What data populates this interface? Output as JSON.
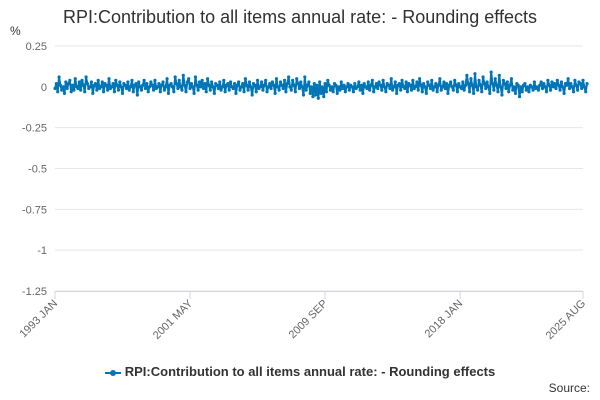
{
  "chart_data": {
    "type": "line",
    "title": "RPI:Contribution to all items annual rate: - Rounding effects",
    "y_unit_label": "%",
    "xlabel": "",
    "ylabel": "",
    "ylim": [
      -1.25,
      0.25
    ],
    "y_ticks": [
      "0.25",
      "0",
      "-0.25",
      "-0.5",
      "-0.75",
      "-1",
      "-1.25"
    ],
    "x_ticks": [
      "1993 JAN",
      "2001 MAY",
      "2009 SEP",
      "2018 JAN",
      "2025 AUG"
    ],
    "x_range": [
      "1993 JAN",
      "2025 AUG"
    ],
    "grid": true,
    "legend_position": "bottom",
    "series": [
      {
        "name": "RPI:Contribution to all items annual rate: - Rounding effects",
        "color": "#0075b8",
        "start": "1993 JAN",
        "frequency": "monthly",
        "values": [
          -0.01,
          0.02,
          -0.03,
          0.06,
          0.01,
          -0.02,
          0.0,
          -0.04,
          0.03,
          -0.01,
          0.02,
          0.04,
          -0.03,
          0.01,
          -0.02,
          0.05,
          0.0,
          -0.01,
          0.03,
          -0.02,
          0.04,
          0.01,
          -0.03,
          0.06,
          0.02,
          -0.01,
          0.0,
          0.03,
          -0.04,
          0.01,
          0.02,
          -0.02,
          0.04,
          -0.01,
          0.0,
          0.03,
          -0.03,
          0.02,
          0.01,
          -0.02,
          0.05,
          -0.01,
          0.0,
          0.02,
          -0.03,
          0.04,
          0.01,
          -0.02,
          0.03,
          0.0,
          -0.04,
          0.02,
          0.01,
          -0.01,
          0.03,
          -0.02,
          0.0,
          0.04,
          -0.03,
          0.01,
          0.02,
          -0.05,
          0.03,
          0.0,
          -0.02,
          0.01,
          0.04,
          -0.01,
          0.02,
          -0.03,
          0.0,
          0.03,
          0.01,
          -0.02,
          0.04,
          -0.01,
          0.0,
          0.02,
          -0.03,
          0.01,
          0.03,
          -0.02,
          0.0,
          0.05,
          -0.04,
          0.01,
          0.02,
          0.0,
          -0.03,
          0.06,
          0.02,
          -0.01,
          0.04,
          0.0,
          -0.02,
          0.07,
          0.01,
          -0.03,
          0.03,
          0.05,
          -0.01,
          0.02,
          0.0,
          -0.04,
          0.06,
          0.01,
          -0.02,
          0.03,
          0.0,
          0.04,
          -0.01,
          0.02,
          -0.03,
          0.05,
          0.01,
          -0.02,
          0.03,
          0.0,
          -0.04,
          0.02,
          0.01,
          -0.01,
          0.03,
          -0.02,
          0.0,
          0.04,
          -0.03,
          0.01,
          0.02,
          -0.02,
          0.03,
          0.0,
          -0.01,
          0.02,
          -0.04,
          0.01,
          0.03,
          -0.02,
          0.0,
          0.02,
          -0.03,
          0.05,
          0.01,
          -0.02,
          0.03,
          0.0,
          -0.05,
          0.02,
          0.01,
          -0.03,
          0.04,
          -0.01,
          0.0,
          0.03,
          -0.02,
          0.01,
          0.04,
          -0.03,
          0.0,
          0.02,
          -0.01,
          0.03,
          0.01,
          -0.04,
          0.05,
          0.0,
          -0.02,
          0.03,
          0.01,
          -0.01,
          0.04,
          -0.03,
          0.02,
          0.06,
          0.0,
          -0.02,
          0.04,
          0.01,
          -0.03,
          0.05,
          0.02,
          -0.01,
          0.03,
          0.0,
          -0.05,
          0.06,
          -0.02,
          0.01,
          0.03,
          -0.04,
          0.0,
          -0.06,
          0.02,
          -0.05,
          0.01,
          -0.07,
          0.03,
          -0.04,
          0.0,
          -0.06,
          0.02,
          -0.03,
          0.04,
          0.01,
          -0.02,
          0.0,
          -0.03,
          0.02,
          0.01,
          -0.04,
          0.0,
          -0.02,
          0.03,
          -0.01,
          0.01,
          -0.03,
          0.0,
          0.02,
          -0.02,
          0.01,
          0.0,
          -0.03,
          0.02,
          -0.01,
          0.0,
          0.03,
          -0.02,
          0.01,
          -0.04,
          0.02,
          0.0,
          -0.01,
          0.03,
          -0.02,
          0.01,
          0.04,
          -0.03,
          0.0,
          0.02,
          -0.01,
          0.03,
          0.01,
          -0.02,
          0.04,
          0.0,
          -0.03,
          0.02,
          0.01,
          -0.01,
          0.05,
          -0.02,
          0.0,
          0.03,
          -0.04,
          0.01,
          0.02,
          -0.02,
          0.04,
          0.0,
          -0.01,
          0.03,
          -0.03,
          0.02,
          0.01,
          -0.02,
          0.04,
          -0.01,
          0.0,
          0.03,
          -0.02,
          0.05,
          0.01,
          -0.03,
          0.02,
          0.0,
          -0.04,
          0.03,
          0.01,
          -0.01,
          0.04,
          -0.02,
          0.0,
          0.02,
          -0.03,
          0.01,
          0.05,
          -0.02,
          0.0,
          0.03,
          -0.01,
          0.02,
          -0.04,
          0.01,
          0.03,
          0.0,
          -0.02,
          0.04,
          0.01,
          -0.03,
          0.02,
          0.0,
          -0.01,
          0.03,
          -0.02,
          0.01,
          0.07,
          0.02,
          -0.03,
          0.05,
          0.01,
          -0.04,
          0.08,
          0.0,
          -0.02,
          0.04,
          0.01,
          -0.03,
          0.06,
          0.02,
          -0.01,
          0.03,
          0.0,
          -0.04,
          0.09,
          0.02,
          -0.02,
          0.05,
          0.01,
          -0.03,
          0.07,
          0.0,
          -0.05,
          0.04,
          0.02,
          -0.01,
          0.03,
          -0.03,
          0.01,
          0.05,
          -0.02,
          0.0,
          -0.04,
          0.02,
          0.01,
          -0.06,
          0.0,
          -0.03,
          0.01,
          0.02,
          -0.02,
          0.0,
          -0.03,
          0.01,
          0.0,
          -0.02,
          0.03,
          -0.01,
          0.0,
          -0.02,
          0.01,
          0.03,
          -0.01,
          0.02,
          0.0,
          -0.03,
          0.04,
          0.01,
          -0.02,
          0.03,
          0.0,
          0.02,
          -0.01,
          0.04,
          0.01,
          -0.02,
          0.03,
          0.0,
          -0.04,
          0.02,
          0.01,
          0.05,
          -0.01,
          0.02,
          0.0,
          -0.03,
          0.04,
          0.01,
          -0.02,
          0.03,
          0.02,
          -0.01,
          0.04,
          0.0,
          -0.03,
          0.02
        ]
      }
    ]
  },
  "footer": {
    "source_label": "Source:"
  }
}
